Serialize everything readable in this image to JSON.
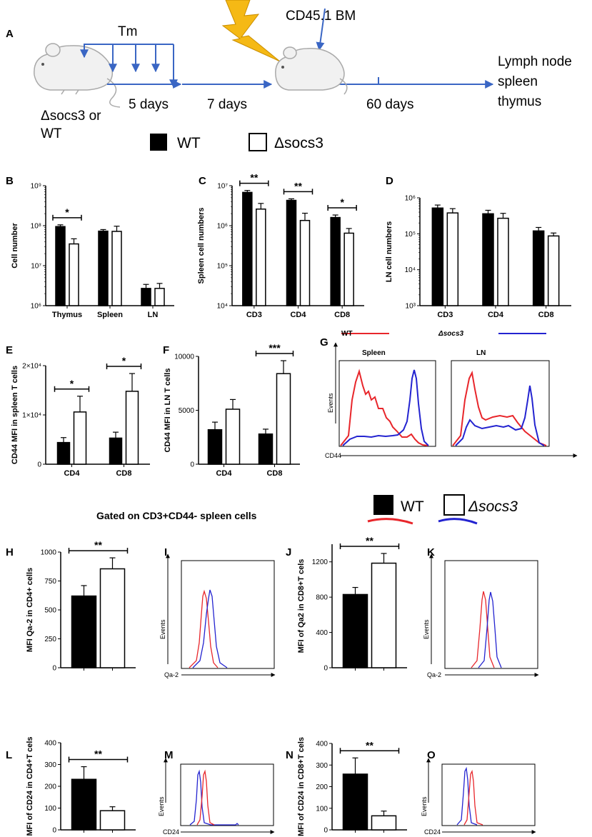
{
  "colors": {
    "wt": "#000000",
    "socs": "#ffffff",
    "red": "#e8262b",
    "blue": "#2323d0",
    "arrow": "#3a66c4",
    "bolt": "#f5b915"
  },
  "schematic": {
    "panel": "A",
    "tm": "Tm",
    "bm": "CD45.1 BM",
    "d5": "5 days",
    "d7": "7 days",
    "d60": "60 days",
    "mouse1_l1": "Δsocs3 or",
    "mouse1_l2": "WT",
    "out_l1": "Lymph node",
    "out_l2": "spleen",
    "out_l3": "thymus"
  },
  "legend1": {
    "wt": "WT",
    "socs": "Δsocs3"
  },
  "legend_g": {
    "wt": "WT",
    "socs": "Δsocs3"
  },
  "legend2": {
    "wt": "WT",
    "socs": "Δsocs3"
  },
  "gated_title": "Gated on CD3+CD44- spleen cells",
  "hist": {
    "G": {
      "panel": "G",
      "tleft": "Spleen",
      "tright": "LN",
      "ylabel": "Events",
      "xlabel": "CD44"
    },
    "I": {
      "panel": "I",
      "ylabel": "Events",
      "xlabel": "Qa-2"
    },
    "K": {
      "panel": "K",
      "ylabel": "Events",
      "xlabel": "Qa-2"
    },
    "M": {
      "panel": "M",
      "ylabel": "Events",
      "xlabel": "CD24"
    },
    "O": {
      "panel": "O",
      "ylabel": "Events",
      "xlabel": "CD24"
    }
  },
  "chart_data": [
    {
      "panel": "B",
      "type": "bar",
      "scale": "log",
      "ylim": [
        1000000,
        1000000000
      ],
      "ylabel": "Cell number",
      "yticks": [
        "10⁶",
        "10⁷",
        "10⁸",
        "10⁹"
      ],
      "categories": [
        "Thymus",
        "Spleen",
        "LN"
      ],
      "series": [
        {
          "name": "WT",
          "values": [
            95000000,
            73000000,
            2700000
          ],
          "err": [
            10000000,
            7000000,
            700000
          ]
        },
        {
          "name": "Δsocs3",
          "values": [
            35000000,
            72000000,
            2700000
          ],
          "err": [
            12000000,
            25000000,
            900000
          ]
        }
      ],
      "sig": [
        {
          "group": 0,
          "label": "*"
        }
      ]
    },
    {
      "panel": "C",
      "type": "bar",
      "scale": "log",
      "ylim": [
        10000,
        10000000
      ],
      "ylabel": "Spleen cell numbers",
      "yticks": [
        "10⁴",
        "10⁵",
        "10⁶",
        "10⁷"
      ],
      "categories": [
        "CD3",
        "CD4",
        "CD8"
      ],
      "series": [
        {
          "name": "WT",
          "values": [
            6800000,
            4300000,
            1600000
          ],
          "err": [
            800000,
            400000,
            250000
          ]
        },
        {
          "name": "Δsocs3",
          "values": [
            2600000,
            1350000,
            650000
          ],
          "err": [
            1000000,
            700000,
            200000
          ]
        }
      ],
      "sig": [
        {
          "group": 0,
          "label": "**"
        },
        {
          "group": 1,
          "label": "**"
        },
        {
          "group": 2,
          "label": "*"
        }
      ]
    },
    {
      "panel": "D",
      "type": "bar",
      "scale": "log",
      "ylim": [
        1000,
        1000000
      ],
      "ylabel": "LN cell numbers",
      "yticks": [
        "10³",
        "10⁴",
        "10⁵",
        "10⁶"
      ],
      "categories": [
        "CD3",
        "CD4",
        "CD8"
      ],
      "series": [
        {
          "name": "WT",
          "values": [
            520000,
            360000,
            120000
          ],
          "err": [
            110000,
            90000,
            30000
          ]
        },
        {
          "name": "Δsocs3",
          "values": [
            380000,
            270000,
            87000
          ],
          "err": [
            120000,
            100000,
            18000
          ]
        }
      ],
      "sig": []
    },
    {
      "panel": "E",
      "type": "bar",
      "scale": "linear",
      "ylim": [
        0,
        20000
      ],
      "ylabel": "CD44 MFI in spleen  T cells",
      "yticks": [
        "0",
        "1×10⁴",
        "2×10⁴"
      ],
      "ytick_values": [
        0,
        10000,
        20000
      ],
      "categories": [
        "CD4",
        "CD8"
      ],
      "series": [
        {
          "name": "WT",
          "values": [
            4400,
            5300
          ],
          "err": [
            1000,
            1200
          ]
        },
        {
          "name": "Δsocs3",
          "values": [
            10600,
            14800
          ],
          "err": [
            3200,
            3600
          ]
        }
      ],
      "sig": [
        {
          "group": 0,
          "label": "*"
        },
        {
          "group": 1,
          "label": "*"
        }
      ]
    },
    {
      "panel": "F",
      "type": "bar",
      "scale": "linear",
      "ylim": [
        0,
        10000
      ],
      "ylabel": "CD44 MFI in LN T cells",
      "yticks": [
        "0",
        "5000",
        "10000"
      ],
      "ytick_values": [
        0,
        5000,
        10000
      ],
      "categories": [
        "CD4",
        "CD8"
      ],
      "series": [
        {
          "name": "WT",
          "values": [
            3200,
            2800
          ],
          "err": [
            700,
            450
          ]
        },
        {
          "name": "Δsocs3",
          "values": [
            5100,
            8400
          ],
          "err": [
            900,
            1200
          ]
        }
      ],
      "sig": [
        {
          "group": 1,
          "label": "***"
        }
      ]
    },
    {
      "panel": "H",
      "type": "bar",
      "scale": "linear",
      "ylim": [
        0,
        1000
      ],
      "ylabel": "MFI Qa-2 in  CD4+  cells",
      "yticks": [
        "0",
        "250",
        "500",
        "750",
        "1000"
      ],
      "ytick_values": [
        0,
        250,
        500,
        750,
        1000
      ],
      "categories": [
        ""
      ],
      "series": [
        {
          "name": "WT",
          "values": [
            620
          ],
          "err": [
            90
          ]
        },
        {
          "name": "Δsocs3",
          "values": [
            855
          ],
          "err": [
            95
          ]
        }
      ],
      "sig": [
        {
          "group": 0,
          "label": "**"
        }
      ]
    },
    {
      "panel": "J",
      "type": "bar",
      "scale": "linear",
      "ylim": [
        0,
        1400
      ],
      "ylabel": "MFI of Qa2 in CD8+T cels",
      "yticks": [
        "0",
        "400",
        "800",
        "1200"
      ],
      "ytick_values": [
        0,
        400,
        800,
        1200
      ],
      "categories": [
        ""
      ],
      "series": [
        {
          "name": "WT",
          "values": [
            830
          ],
          "err": [
            80
          ]
        },
        {
          "name": "Δsocs3",
          "values": [
            1185
          ],
          "err": [
            110
          ]
        }
      ],
      "sig": [
        {
          "group": 0,
          "label": "**"
        }
      ]
    },
    {
      "panel": "L",
      "type": "bar",
      "scale": "linear",
      "ylim": [
        0,
        400
      ],
      "ylabel": "MFI of CD24 in  CD4+T cels",
      "yticks": [
        "0",
        "100",
        "200",
        "300",
        "400"
      ],
      "ytick_values": [
        0,
        100,
        200,
        300,
        400
      ],
      "categories": [
        ""
      ],
      "series": [
        {
          "name": "WT",
          "values": [
            232
          ],
          "err": [
            58
          ]
        },
        {
          "name": "Δsocs3",
          "values": [
            88
          ],
          "err": [
            18
          ]
        }
      ],
      "sig": [
        {
          "group": 0,
          "label": "**"
        }
      ]
    },
    {
      "panel": "N",
      "type": "bar",
      "scale": "linear",
      "ylim": [
        0,
        400
      ],
      "ylabel": "MFI of CD24 in CD8+T cels",
      "yticks": [
        "0",
        "100",
        "200",
        "300",
        "400"
      ],
      "ytick_values": [
        0,
        100,
        200,
        300,
        400
      ],
      "categories": [
        ""
      ],
      "series": [
        {
          "name": "WT",
          "values": [
            258
          ],
          "err": [
            75
          ]
        },
        {
          "name": "Δsocs3",
          "values": [
            65
          ],
          "err": [
            22
          ]
        }
      ],
      "sig": [
        {
          "group": 0,
          "label": "**"
        }
      ]
    }
  ]
}
